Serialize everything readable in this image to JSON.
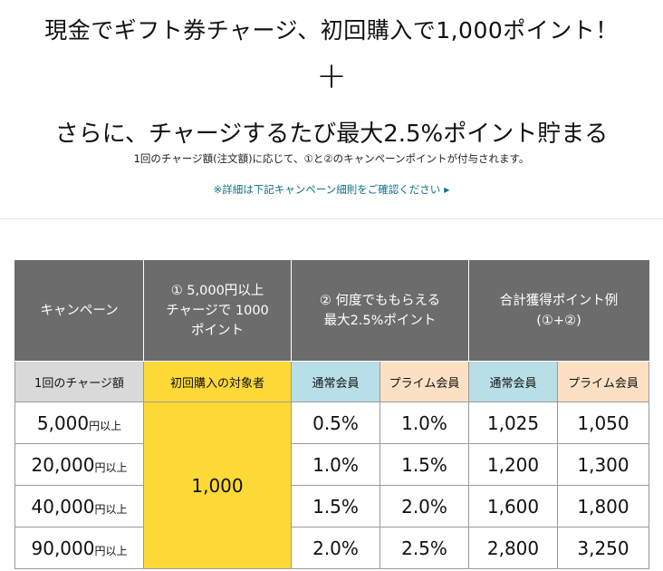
{
  "headline": "現金でギフト券チャージ、初回購入で1,000ポイント！",
  "plus": "+",
  "subheadline": "さらに、チャージするたび最大2.5%ポイント貯まる",
  "note": "1回のチャージ額(注文額)に応じて、①と②のキャンペーンポイントが付与されます。",
  "link": {
    "label": "※詳細は下記キャンペーン細則をご確認ください",
    "arrow": "▶"
  },
  "table": {
    "header": {
      "campaign": "キャンペーン",
      "first_purchase": "① 5,000円以上 チャージで 1000ポイント",
      "repeat": "② 何度でももらえる 最大2.5%ポイント",
      "total": "合計獲得ポイント例 (①+②)"
    },
    "subheader": {
      "charge_amount": "1回のチャージ額",
      "first_target": "初回購入の対象者",
      "regular1": "通常会員",
      "prime1": "プライム会員",
      "regular2": "通常会員",
      "prime2": "プライム会員"
    },
    "first_purchase_points": "1,000",
    "amount_unit": "円以上",
    "rows": [
      {
        "amount": "5,000",
        "regular_rate": "0.5%",
        "prime_rate": "1.0%",
        "regular_total": "1,025",
        "prime_total": "1,050"
      },
      {
        "amount": "20,000",
        "regular_rate": "1.0%",
        "prime_rate": "1.5%",
        "regular_total": "1,200",
        "prime_total": "1,300"
      },
      {
        "amount": "40,000",
        "regular_rate": "1.5%",
        "prime_rate": "2.0%",
        "regular_total": "1,600",
        "prime_total": "1,800"
      },
      {
        "amount": "90,000",
        "regular_rate": "2.0%",
        "prime_rate": "2.5%",
        "regular_total": "2,800",
        "prime_total": "3,250"
      }
    ]
  }
}
